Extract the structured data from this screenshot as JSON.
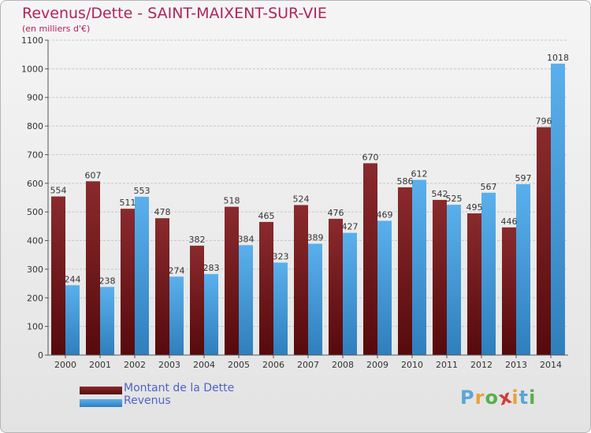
{
  "header": {
    "title": "Revenus/Dette - SAINT-MAIXENT-SUR-VIE",
    "subtitle": "(en milliers d'€)"
  },
  "chart_data": {
    "type": "bar",
    "title": "Revenus/Dette - SAINT-MAIXENT-SUR-VIE",
    "subtitle": "(en milliers d'€)",
    "xlabel": "",
    "ylabel": "",
    "ylim": [
      0,
      1100
    ],
    "yticks": [
      0,
      100,
      200,
      300,
      400,
      500,
      600,
      700,
      800,
      900,
      1000,
      1100
    ],
    "grid": true,
    "legend_position": "bottom-left",
    "categories": [
      "2000",
      "2001",
      "2002",
      "2003",
      "2004",
      "2005",
      "2006",
      "2007",
      "2008",
      "2009",
      "2010",
      "2011",
      "2012",
      "2013",
      "2014"
    ],
    "series": [
      {
        "name": "Montant de la Dette",
        "color": "#7b1f22",
        "values": [
          554,
          607,
          511,
          478,
          382,
          518,
          465,
          524,
          476,
          670,
          586,
          542,
          495,
          446,
          796
        ],
        "labels": [
          "554",
          "607",
          "511",
          "478",
          "382",
          "518",
          "465",
          "524",
          "476",
          "670",
          "586",
          "542",
          "495",
          "446",
          "796"
        ]
      },
      {
        "name": "Revenus",
        "color": "#4ea6e4",
        "values": [
          244,
          238,
          553,
          274,
          283,
          384,
          323,
          389,
          427,
          469,
          612,
          525,
          567,
          597,
          1018
        ],
        "labels": [
          "244",
          "238",
          "553",
          "274",
          "283",
          "384",
          "323",
          "389",
          "427",
          "469",
          "612",
          "525",
          "567",
          "597",
          "1018"
        ]
      }
    ]
  },
  "logo": {
    "letters": [
      "P",
      "r",
      "o",
      "x",
      "i",
      "t",
      "i"
    ],
    "colors": [
      "#5aa6d6",
      "#e8a23a",
      "#58b04a",
      "#d33b3b",
      "#e8a23a",
      "#5aa6d6",
      "#58b04a"
    ]
  }
}
